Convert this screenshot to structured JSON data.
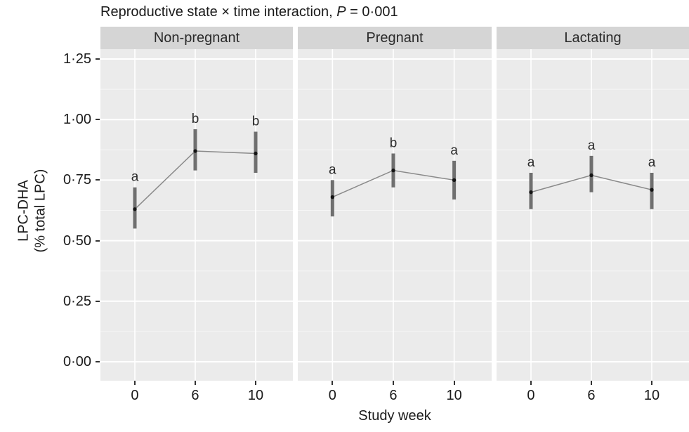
{
  "figure": {
    "title": {
      "prefix": "Reproductive state × time interaction, ",
      "p_symbol": "P",
      "p_rest": " = 0·001"
    },
    "x_axis_label": "Study week",
    "y_axis_label_line1": "LPC-DHA",
    "y_axis_label_line2": "(% total LPC)"
  },
  "chart_data": {
    "type": "line",
    "subtype": "point-errorbar with connecting line, faceted",
    "title": "Reproductive state × time interaction, P = 0·001",
    "xlabel": "Study week",
    "ylabel": "LPC-DHA (% total LPC)",
    "x_values": [
      0,
      6,
      10
    ],
    "x_ticks": [
      "0",
      "6",
      "10"
    ],
    "ylim": [
      0,
      1.25
    ],
    "y_ticks": [
      {
        "value": 0.0,
        "label": "0·00"
      },
      {
        "value": 0.25,
        "label": "0·25"
      },
      {
        "value": 0.5,
        "label": "0·50"
      },
      {
        "value": 0.75,
        "label": "0·75"
      },
      {
        "value": 1.0,
        "label": "1·00"
      },
      {
        "value": 1.25,
        "label": "1·25"
      }
    ],
    "grid": "white major and minor horizontal gridlines, white vertical gridlines at x ticks, gray panel background",
    "legend": "none",
    "facets": [
      {
        "label": "Non-pregnant",
        "means": [
          0.63,
          0.87,
          0.86
        ],
        "lower": [
          0.55,
          0.79,
          0.78
        ],
        "upper": [
          0.72,
          0.96,
          0.95
        ],
        "letters": [
          "a",
          "b",
          "b"
        ]
      },
      {
        "label": "Pregnant",
        "means": [
          0.68,
          0.79,
          0.75
        ],
        "lower": [
          0.6,
          0.72,
          0.67
        ],
        "upper": [
          0.75,
          0.86,
          0.83
        ],
        "letters": [
          "a",
          "b",
          "a"
        ]
      },
      {
        "label": "Lactating",
        "means": [
          0.7,
          0.77,
          0.71
        ],
        "lower": [
          0.63,
          0.7,
          0.63
        ],
        "upper": [
          0.78,
          0.85,
          0.78
        ],
        "letters": [
          "a",
          "a",
          "a"
        ]
      }
    ]
  },
  "colors": {
    "panel_bg": "#ebebeb",
    "strip_bg": "#d5d5d5",
    "grid_major": "#ffffff",
    "grid_minor": "#f6f6f6",
    "error_bar": "#6f6f6f",
    "line": "#8a8a8a",
    "point": "#141414",
    "tick": "#333333",
    "text": "#1a1a1a"
  }
}
